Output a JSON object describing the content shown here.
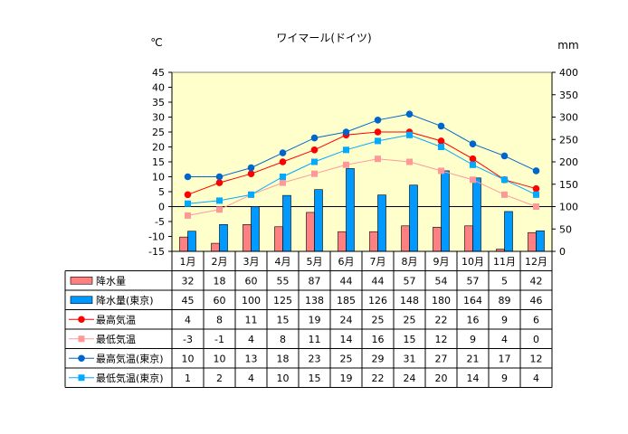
{
  "chart_data": {
    "type": "bar",
    "title": "ワイマール(ドイツ)",
    "left_unit": "℃",
    "right_unit": "mm",
    "left_axis": {
      "min": -15,
      "max": 45,
      "step": 5
    },
    "right_axis": {
      "min": 0,
      "max": 400,
      "step": 50
    },
    "categories": [
      "1月",
      "2月",
      "3月",
      "4月",
      "5月",
      "6月",
      "7月",
      "8月",
      "9月",
      "10月",
      "11月",
      "12月"
    ],
    "series": [
      {
        "name": "降水量",
        "kind": "bar",
        "axis": "right",
        "color": "#ff8080",
        "values": [
          32,
          18,
          60,
          55,
          87,
          44,
          44,
          57,
          54,
          57,
          5,
          42
        ]
      },
      {
        "name": "降水量(東京)",
        "kind": "bar",
        "axis": "right",
        "color": "#0099ff",
        "values": [
          45,
          60,
          100,
          125,
          138,
          185,
          126,
          148,
          180,
          164,
          89,
          46
        ]
      },
      {
        "name": "最高気温",
        "kind": "line",
        "marker": "circle",
        "axis": "left",
        "color": "#ff0000",
        "values": [
          4,
          8,
          11,
          15,
          19,
          24,
          25,
          25,
          22,
          16,
          9,
          6
        ]
      },
      {
        "name": "最低気温",
        "kind": "line",
        "marker": "square",
        "axis": "left",
        "color": "#ff9999",
        "values": [
          -3,
          -1,
          4,
          8,
          11,
          14,
          16,
          15,
          12,
          9,
          4,
          0
        ]
      },
      {
        "name": "最高気温(東京)",
        "kind": "line",
        "marker": "circle",
        "axis": "left",
        "color": "#0066cc",
        "values": [
          10,
          10,
          13,
          18,
          23,
          25,
          29,
          31,
          27,
          21,
          17,
          12
        ]
      },
      {
        "name": "最低気温(東京)",
        "kind": "line",
        "marker": "square",
        "axis": "left",
        "color": "#00aaff",
        "values": [
          1,
          2,
          4,
          10,
          15,
          19,
          22,
          24,
          20,
          14,
          9,
          4
        ]
      }
    ],
    "plot_background": "#ffffcc"
  }
}
